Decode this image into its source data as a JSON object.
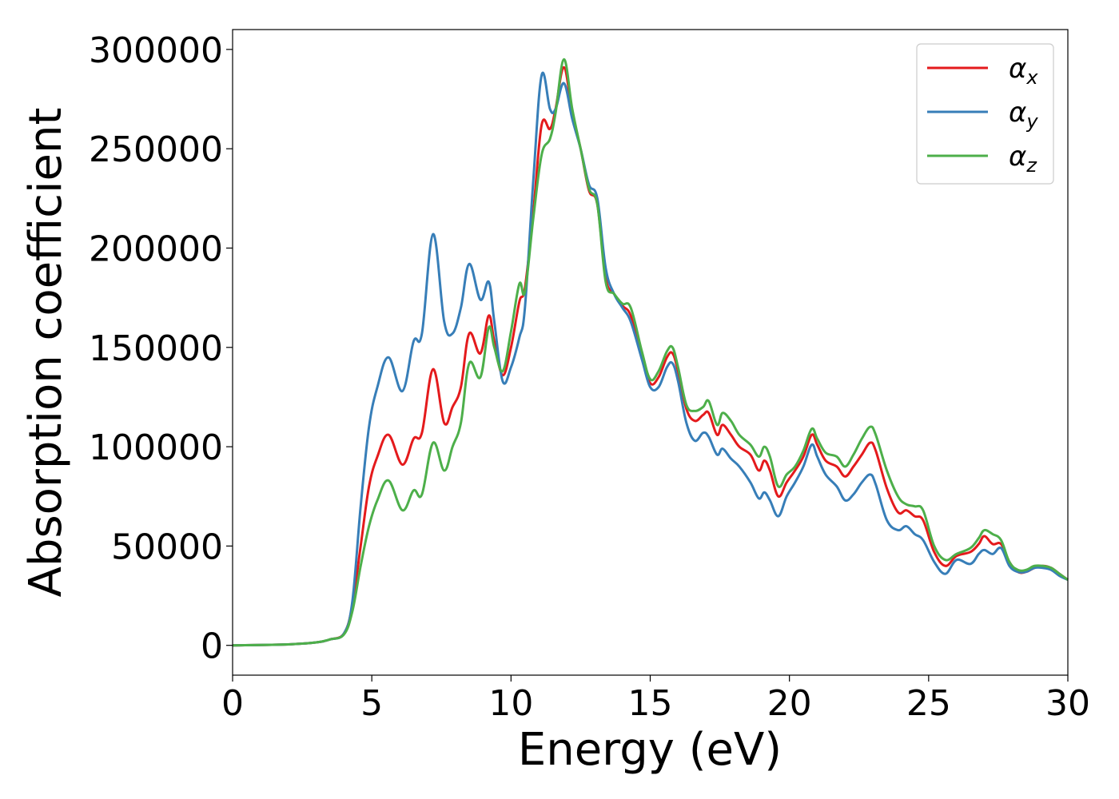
{
  "chart_data": {
    "type": "line",
    "title": "",
    "xlabel": "Energy (eV)",
    "ylabel": "Absorption coefficient",
    "xlim": [
      0,
      30
    ],
    "ylim": [
      -15000,
      310000
    ],
    "xticks": [
      0,
      5,
      10,
      15,
      20,
      25,
      30
    ],
    "yticks": [
      0,
      50000,
      100000,
      150000,
      200000,
      250000,
      300000
    ],
    "grid": false,
    "legend_position": "top-right",
    "series": [
      {
        "name": "α_x",
        "legend_base": "α",
        "legend_sub": "x",
        "color": "#e41a1c",
        "x": [
          0,
          2,
          3,
          3.5,
          4,
          4.3,
          4.6,
          4.9,
          5.2,
          5.6,
          6.1,
          6.5,
          6.8,
          7.2,
          7.6,
          7.9,
          8.2,
          8.5,
          8.9,
          9.2,
          9.4,
          9.7,
          10.0,
          10.3,
          10.5,
          10.8,
          11.1,
          11.4,
          11.6,
          11.9,
          12.2,
          12.5,
          12.8,
          13.1,
          13.4,
          13.7,
          14.0,
          14.3,
          14.7,
          15.0,
          15.3,
          15.6,
          15.8,
          16.0,
          16.3,
          16.6,
          16.9,
          17.1,
          17.4,
          17.6,
          17.9,
          18.2,
          18.6,
          18.9,
          19.1,
          19.3,
          19.6,
          19.9,
          20.2,
          20.5,
          20.8,
          21.0,
          21.3,
          21.7,
          22.0,
          22.3,
          22.6,
          22.9,
          23.1,
          23.5,
          23.9,
          24.2,
          24.5,
          24.8,
          25.2,
          25.6,
          26.0,
          26.5,
          26.8,
          27.0,
          27.3,
          27.6,
          27.9,
          28.2,
          28.5,
          28.8,
          29.1,
          29.4,
          29.7,
          30.0
        ],
        "y": [
          0,
          500,
          1500,
          3000,
          6000,
          20000,
          50000,
          80000,
          95000,
          106000,
          91000,
          104000,
          107000,
          139000,
          112000,
          120000,
          130000,
          157000,
          147000,
          166000,
          153000,
          136000,
          150000,
          173000,
          180000,
          218000,
          262000,
          260000,
          270000,
          291000,
          268000,
          250000,
          229000,
          222000,
          185000,
          177000,
          171000,
          166000,
          146000,
          132000,
          135000,
          145000,
          147000,
          138000,
          119000,
          113000,
          116000,
          117000,
          106000,
          111000,
          106000,
          100000,
          96000,
          88000,
          93000,
          88000,
          75000,
          82000,
          88000,
          95000,
          106000,
          101000,
          93000,
          90000,
          85000,
          90000,
          96000,
          102000,
          98000,
          79000,
          67000,
          68000,
          65000,
          63000,
          47000,
          40000,
          45000,
          47000,
          51000,
          55000,
          51000,
          51000,
          42000,
          37000,
          37000,
          39000,
          40000,
          39000,
          36000,
          33000
        ]
      },
      {
        "name": "α_y",
        "legend_base": "α",
        "legend_sub": "y",
        "color": "#377eb8",
        "x": [
          0,
          2,
          3,
          3.5,
          4,
          4.3,
          4.6,
          4.9,
          5.2,
          5.6,
          6.1,
          6.5,
          6.8,
          7.2,
          7.6,
          7.9,
          8.2,
          8.5,
          8.9,
          9.2,
          9.4,
          9.7,
          10.0,
          10.3,
          10.5,
          10.8,
          11.1,
          11.4,
          11.6,
          11.9,
          12.2,
          12.5,
          12.8,
          13.1,
          13.4,
          13.7,
          14.0,
          14.3,
          14.7,
          15.0,
          15.3,
          15.6,
          15.8,
          16.0,
          16.3,
          16.6,
          16.9,
          17.1,
          17.4,
          17.6,
          17.9,
          18.2,
          18.6,
          18.9,
          19.1,
          19.3,
          19.6,
          19.9,
          20.2,
          20.5,
          20.8,
          21.0,
          21.3,
          21.7,
          22.0,
          22.3,
          22.6,
          22.9,
          23.1,
          23.5,
          23.9,
          24.2,
          24.5,
          24.8,
          25.2,
          25.6,
          26.0,
          26.5,
          26.8,
          27.0,
          27.3,
          27.6,
          27.9,
          28.2,
          28.5,
          28.8,
          29.1,
          29.4,
          29.7,
          30.0
        ],
        "y": [
          0,
          500,
          1500,
          3000,
          6000,
          22000,
          70000,
          110000,
          130000,
          145000,
          128000,
          153000,
          157000,
          207000,
          163000,
          157000,
          170000,
          192000,
          174000,
          183000,
          163000,
          133000,
          140000,
          155000,
          170000,
          234000,
          287000,
          270000,
          270000,
          283000,
          265000,
          250000,
          232000,
          225000,
          190000,
          177000,
          170000,
          163000,
          144000,
          130000,
          130000,
          140000,
          142000,
          133000,
          112000,
          103000,
          107000,
          105000,
          96000,
          99000,
          94000,
          90000,
          82000,
          74000,
          77000,
          73000,
          65000,
          75000,
          82000,
          90000,
          101000,
          95000,
          86000,
          80000,
          73000,
          76000,
          82000,
          86000,
          81000,
          63000,
          58000,
          60000,
          56000,
          53000,
          42000,
          36000,
          43000,
          41000,
          46000,
          48000,
          46000,
          49000,
          40000,
          37000,
          37000,
          39000,
          39000,
          38000,
          35000,
          33000
        ]
      },
      {
        "name": "α_z",
        "legend_base": "α",
        "legend_sub": "z",
        "color": "#4daf4a",
        "x": [
          0,
          2,
          3,
          3.5,
          4,
          4.3,
          4.6,
          4.9,
          5.2,
          5.6,
          6.1,
          6.5,
          6.8,
          7.2,
          7.6,
          7.9,
          8.2,
          8.5,
          8.9,
          9.2,
          9.4,
          9.7,
          10.0,
          10.3,
          10.5,
          10.8,
          11.1,
          11.4,
          11.6,
          11.9,
          12.2,
          12.5,
          12.8,
          13.1,
          13.4,
          13.7,
          14.0,
          14.3,
          14.7,
          15.0,
          15.3,
          15.6,
          15.8,
          16.0,
          16.3,
          16.6,
          16.9,
          17.1,
          17.4,
          17.6,
          17.9,
          18.2,
          18.6,
          18.9,
          19.1,
          19.3,
          19.6,
          19.9,
          20.2,
          20.5,
          20.8,
          21.0,
          21.3,
          21.7,
          22.0,
          22.3,
          22.6,
          22.9,
          23.1,
          23.5,
          23.9,
          24.2,
          24.5,
          24.8,
          25.2,
          25.6,
          26.0,
          26.5,
          26.8,
          27.0,
          27.3,
          27.6,
          27.9,
          28.2,
          28.5,
          28.8,
          29.1,
          29.4,
          29.7,
          30.0
        ],
        "y": [
          0,
          500,
          1500,
          3000,
          5500,
          17000,
          40000,
          60000,
          73000,
          83000,
          68000,
          78000,
          76000,
          102000,
          88000,
          100000,
          112000,
          142000,
          135000,
          160000,
          150000,
          138000,
          158000,
          182000,
          178000,
          215000,
          247000,
          255000,
          268000,
          295000,
          270000,
          250000,
          230000,
          222000,
          183000,
          177000,
          172000,
          170000,
          148000,
          134000,
          138000,
          148000,
          150000,
          140000,
          121000,
          118000,
          120000,
          123000,
          111000,
          117000,
          113000,
          106000,
          101000,
          95000,
          100000,
          95000,
          80000,
          86000,
          90000,
          98000,
          109000,
          104000,
          97000,
          95000,
          90000,
          96000,
          104000,
          110000,
          106000,
          88000,
          75000,
          71000,
          70000,
          68000,
          50000,
          43000,
          46000,
          49000,
          54000,
          58000,
          56000,
          53000,
          42000,
          38000,
          38000,
          40000,
          40000,
          39000,
          36000,
          33000
        ]
      }
    ]
  }
}
